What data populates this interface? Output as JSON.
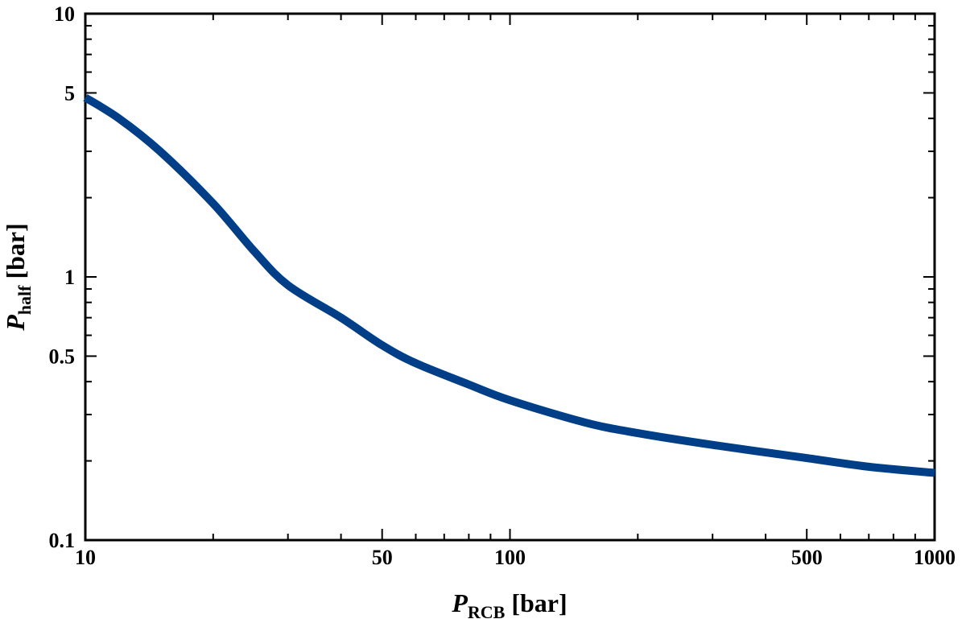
{
  "chart_data": {
    "type": "line",
    "title": "",
    "xlabel": {
      "main": "P",
      "sub": "RCB",
      "unit": " [bar]"
    },
    "ylabel": {
      "main": "P",
      "sub": "half",
      "unit": " [bar]"
    },
    "xscale": "log",
    "yscale": "log",
    "xlim": [
      10,
      1000
    ],
    "ylim": [
      0.1,
      10
    ],
    "x_tick_labels": [
      {
        "value": 10,
        "label": "10"
      },
      {
        "value": 50,
        "label": "50"
      },
      {
        "value": 100,
        "label": "100"
      },
      {
        "value": 500,
        "label": "500"
      },
      {
        "value": 1000,
        "label": "1000"
      }
    ],
    "y_tick_labels": [
      {
        "value": 0.1,
        "label": "0.1"
      },
      {
        "value": 0.5,
        "label": "0.5"
      },
      {
        "value": 1,
        "label": "1"
      },
      {
        "value": 5,
        "label": "5"
      },
      {
        "value": 10,
        "label": "10"
      }
    ],
    "grid": false,
    "legend": "none",
    "series": [
      {
        "color": "#003f87",
        "x": [
          10,
          12,
          15,
          20,
          25,
          30,
          40,
          50,
          60,
          80,
          100,
          150,
          200,
          300,
          500,
          700,
          1000
        ],
        "y": [
          4.8,
          4.0,
          3.0,
          1.9,
          1.25,
          0.93,
          0.7,
          0.55,
          0.47,
          0.39,
          0.34,
          0.28,
          0.255,
          0.23,
          0.205,
          0.19,
          0.18
        ]
      }
    ]
  }
}
